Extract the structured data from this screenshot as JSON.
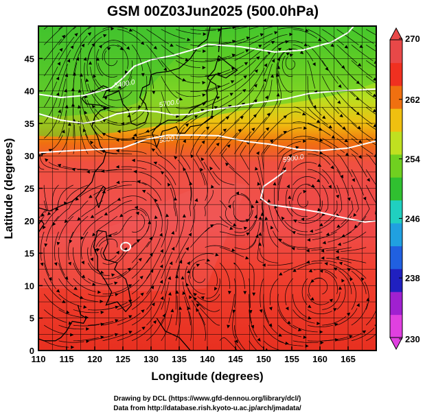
{
  "title": "GSM 00Z03Jun2025 (500.0hPa)",
  "x_axis": {
    "label": "Longitude (degrees)",
    "range": [
      110,
      170
    ],
    "ticks": [
      {
        "v": 110,
        "t": "110"
      },
      {
        "v": 115,
        "t": "115"
      },
      {
        "v": 120,
        "t": "120"
      },
      {
        "v": 125,
        "t": "125"
      },
      {
        "v": 130,
        "t": "130"
      },
      {
        "v": 135,
        "t": "135"
      },
      {
        "v": 140,
        "t": "140"
      },
      {
        "v": 145,
        "t": "145"
      },
      {
        "v": 150,
        "t": "150"
      },
      {
        "v": 155,
        "t": "155"
      },
      {
        "v": 160,
        "t": "160"
      },
      {
        "v": 165,
        "t": "165"
      }
    ]
  },
  "y_axis": {
    "label": "Latitude  (degrees)",
    "range": [
      0,
      50
    ],
    "ticks": [
      {
        "v": 0,
        "t": "0"
      },
      {
        "v": 5,
        "t": "5"
      },
      {
        "v": 10,
        "t": "10"
      },
      {
        "v": 15,
        "t": "15"
      },
      {
        "v": 20,
        "t": "20"
      },
      {
        "v": 25,
        "t": "25"
      },
      {
        "v": 30,
        "t": "30"
      },
      {
        "v": 35,
        "t": "35"
      },
      {
        "v": 40,
        "t": "40"
      },
      {
        "v": 45,
        "t": "45"
      }
    ]
  },
  "colorbar": {
    "range": [
      230,
      270
    ],
    "ticks": [
      {
        "v": 270,
        "t": "270"
      },
      {
        "v": 262,
        "t": "262"
      },
      {
        "v": 254,
        "t": "254"
      },
      {
        "v": 246,
        "t": "246"
      },
      {
        "v": 238,
        "t": "238"
      },
      {
        "v": 230,
        "t": "230"
      }
    ],
    "colors": [
      "#e040e0",
      "#a020d0",
      "#2020c0",
      "#2060e0",
      "#20a0e0",
      "#20d0c0",
      "#30c030",
      "#70d020",
      "#c0e020",
      "#f0c010",
      "#f07010",
      "#f03020",
      "#e84848"
    ]
  },
  "contours": [
    {
      "label": "5400.0"
    },
    {
      "label": "5700.0"
    },
    {
      "label": "5800.0"
    },
    {
      "label": "5900.0"
    }
  ],
  "credits": [
    "Drawing by DCL (https://www.gfd-dennou.org/library/dcl/)",
    "Data from http://database.rish.kyoto-u.ac.jp/arch/jmadata/"
  ]
}
